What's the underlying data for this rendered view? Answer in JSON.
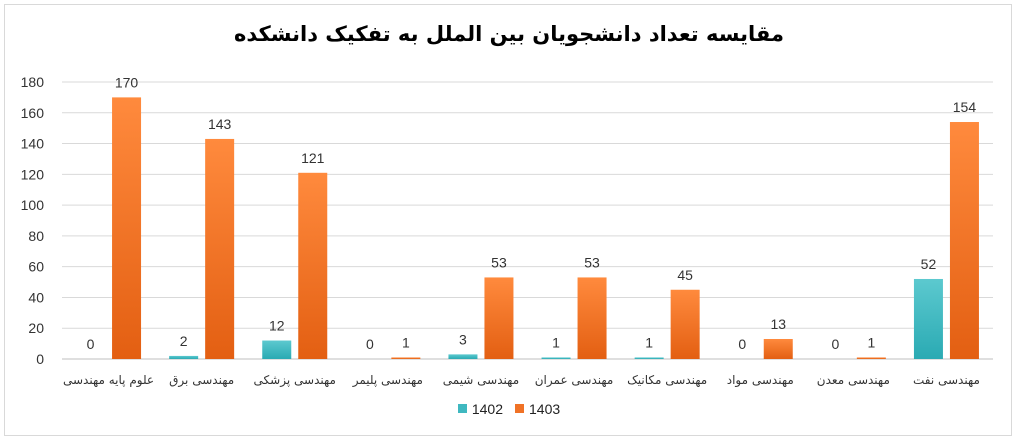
{
  "chart_data": {
    "type": "bar",
    "title": "مقایسه تعداد دانشجویان بین الملل به تفکیک دانشکده",
    "categories": [
      "علوم پایه مهندسی",
      "مهندسی برق",
      "مهندسی پزشکی",
      "مهندسی پلیمر",
      "مهندسی شیمی",
      "مهندسی عمران",
      "مهندسی مکانیک",
      "مهندسی مواد",
      "مهندسی معدن",
      "مهندسی نفت"
    ],
    "series": [
      {
        "name": "1402",
        "color": "#3fb8c0",
        "values": [
          0,
          2,
          12,
          0,
          3,
          1,
          1,
          0,
          0,
          52
        ]
      },
      {
        "name": "1403",
        "color": "#f07226",
        "values": [
          170,
          143,
          121,
          1,
          53,
          53,
          45,
          13,
          1,
          154
        ]
      }
    ],
    "ylim": [
      0,
      180
    ],
    "yticks": [
      0,
      20,
      40,
      60,
      80,
      100,
      120,
      140,
      160,
      180
    ],
    "grid": true,
    "legend_position": "bottom",
    "data_labels": true
  }
}
